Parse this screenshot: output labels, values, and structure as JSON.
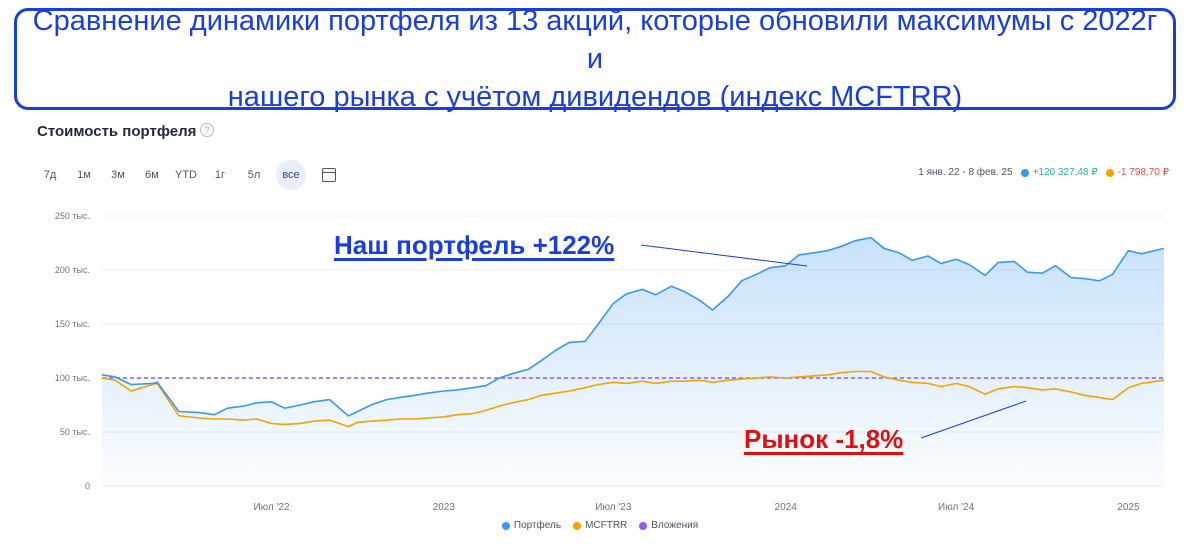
{
  "banner": {
    "line1": "Сравнение динамики портфеля из 13 акций, которые обновили максимумы с 2022г и",
    "line2": "нашего рынка с учётом дивидендов (индекс MCFTRR)"
  },
  "card": {
    "title": "Стоимость портфеля",
    "help_icon": "?"
  },
  "periods": [
    "7д",
    "1м",
    "3м",
    "6м",
    "YTD",
    "1г",
    "5л",
    "все"
  ],
  "active_period": "все",
  "summary": {
    "range": "1 янв. 22 - 8 фев. 25",
    "portfolio_change": "+120 327,48 ₽",
    "market_change": "-1 798,70 ₽",
    "portfolio_color": "#3b97ef",
    "market_color": "#f5a300"
  },
  "annotations": {
    "portfolio": "Наш портфель +122%",
    "market": "Рынок -1,8%"
  },
  "chart_data": {
    "type": "area",
    "y_tick_labels": [
      "250 тыс.",
      "200 тыс.",
      "150 тыс.",
      "100 тыс.",
      "50 тыс.",
      "0"
    ],
    "y_ticks": [
      250000,
      200000,
      150000,
      100000,
      50000,
      0
    ],
    "ylim": [
      0,
      250000
    ],
    "x_tick_labels": [
      "Июл '22",
      "2023",
      "Июл '23",
      "2024",
      "Июл '24",
      "2025"
    ],
    "x_ticks": [
      "2022-07-01",
      "2023-01-01",
      "2023-07-01",
      "2024-01-01",
      "2024-07-01",
      "2025-01-01"
    ],
    "xlim": [
      "2022-01-01",
      "2025-02-08"
    ],
    "grid": "horizontal",
    "legend_position": "bottom",
    "reference_line": {
      "name": "Вложения",
      "value": 100000,
      "color": "#8b5cf6"
    },
    "series": [
      {
        "name": "Портфель",
        "color": "#3b97ef",
        "x": [
          "2022-01-01",
          "2022-01-15",
          "2022-02-01",
          "2022-02-24",
          "2022-03-01",
          "2022-03-24",
          "2022-04-15",
          "2022-05-01",
          "2022-05-15",
          "2022-06-01",
          "2022-06-15",
          "2022-07-01",
          "2022-07-15",
          "2022-08-01",
          "2022-08-15",
          "2022-09-01",
          "2022-09-21",
          "2022-10-01",
          "2022-10-15",
          "2022-11-01",
          "2022-11-15",
          "2022-12-01",
          "2022-12-15",
          "2023-01-01",
          "2023-01-15",
          "2023-02-01",
          "2023-02-15",
          "2023-03-01",
          "2023-03-15",
          "2023-04-01",
          "2023-04-15",
          "2023-05-01",
          "2023-05-15",
          "2023-06-01",
          "2023-06-15",
          "2023-07-01",
          "2023-07-15",
          "2023-08-01",
          "2023-08-15",
          "2023-09-01",
          "2023-09-15",
          "2023-10-01",
          "2023-10-15",
          "2023-11-01",
          "2023-11-15",
          "2023-12-01",
          "2023-12-15",
          "2024-01-01",
          "2024-01-15",
          "2024-02-01",
          "2024-02-15",
          "2024-03-01",
          "2024-03-15",
          "2024-04-01",
          "2024-04-15",
          "2024-05-01",
          "2024-05-15",
          "2024-06-01",
          "2024-06-15",
          "2024-07-01",
          "2024-07-15",
          "2024-08-01",
          "2024-08-15",
          "2024-09-01",
          "2024-09-15",
          "2024-10-01",
          "2024-10-15",
          "2024-11-01",
          "2024-11-15",
          "2024-12-01",
          "2024-12-15",
          "2025-01-01",
          "2025-01-15",
          "2025-02-08"
        ],
        "values": [
          103000,
          101000,
          94000,
          95000,
          96000,
          69000,
          68000,
          66000,
          72000,
          74000,
          77000,
          78000,
          72000,
          75000,
          78000,
          80000,
          65000,
          69000,
          75000,
          80000,
          82000,
          84000,
          86000,
          88000,
          89000,
          91000,
          93000,
          100000,
          104000,
          108000,
          116000,
          126000,
          133000,
          134000,
          150000,
          169000,
          178000,
          182000,
          177000,
          185000,
          180000,
          172000,
          163000,
          176000,
          190000,
          196000,
          202000,
          204000,
          214000,
          216000,
          218000,
          222000,
          227000,
          230000,
          220000,
          216000,
          209000,
          213000,
          206000,
          210000,
          205000,
          195000,
          207000,
          208000,
          198000,
          197000,
          204000,
          193000,
          192000,
          190000,
          196000,
          218000,
          215000,
          220000
        ]
      },
      {
        "name": "MCFTRR",
        "color": "#f5a300",
        "x": [
          "2022-01-01",
          "2022-01-15",
          "2022-02-01",
          "2022-02-24",
          "2022-03-01",
          "2022-03-24",
          "2022-04-15",
          "2022-05-01",
          "2022-05-15",
          "2022-06-01",
          "2022-06-15",
          "2022-07-01",
          "2022-07-15",
          "2022-08-01",
          "2022-08-15",
          "2022-09-01",
          "2022-09-21",
          "2022-10-01",
          "2022-10-15",
          "2022-11-01",
          "2022-11-15",
          "2022-12-01",
          "2022-12-15",
          "2023-01-01",
          "2023-01-15",
          "2023-02-01",
          "2023-02-15",
          "2023-03-01",
          "2023-03-15",
          "2023-04-01",
          "2023-04-15",
          "2023-05-01",
          "2023-05-15",
          "2023-06-01",
          "2023-06-15",
          "2023-07-01",
          "2023-07-15",
          "2023-08-01",
          "2023-08-15",
          "2023-09-01",
          "2023-09-15",
          "2023-10-01",
          "2023-10-15",
          "2023-11-01",
          "2023-11-15",
          "2023-12-01",
          "2023-12-15",
          "2024-01-01",
          "2024-01-15",
          "2024-02-01",
          "2024-02-15",
          "2024-03-01",
          "2024-03-15",
          "2024-04-01",
          "2024-04-15",
          "2024-05-01",
          "2024-05-15",
          "2024-06-01",
          "2024-06-15",
          "2024-07-01",
          "2024-07-15",
          "2024-08-01",
          "2024-08-15",
          "2024-09-01",
          "2024-09-15",
          "2024-10-01",
          "2024-10-15",
          "2024-11-01",
          "2024-11-15",
          "2024-12-01",
          "2024-12-15",
          "2025-01-01",
          "2025-01-15",
          "2025-02-08"
        ],
        "values": [
          100000,
          98000,
          88000,
          94000,
          95000,
          65000,
          63000,
          62000,
          62000,
          61000,
          62000,
          58000,
          57000,
          58000,
          60000,
          61000,
          55000,
          59000,
          60000,
          61000,
          62000,
          62000,
          63000,
          64000,
          66000,
          67000,
          70000,
          74000,
          77000,
          80000,
          84000,
          86000,
          88000,
          91000,
          94000,
          96000,
          95000,
          97000,
          95000,
          97000,
          97000,
          98000,
          96000,
          98000,
          99000,
          100000,
          101000,
          100000,
          101000,
          102000,
          103000,
          105000,
          106000,
          106000,
          101000,
          98000,
          96000,
          95000,
          92000,
          95000,
          92000,
          85000,
          90000,
          92000,
          91000,
          89000,
          90000,
          87000,
          84000,
          82000,
          80000,
          91000,
          95000,
          98000
        ]
      }
    ]
  },
  "legend": [
    "Портфель",
    "MCFTRR",
    "Вложения"
  ],
  "legend_colors": [
    "#3b97ef",
    "#f5a300",
    "#8b5cf6"
  ]
}
